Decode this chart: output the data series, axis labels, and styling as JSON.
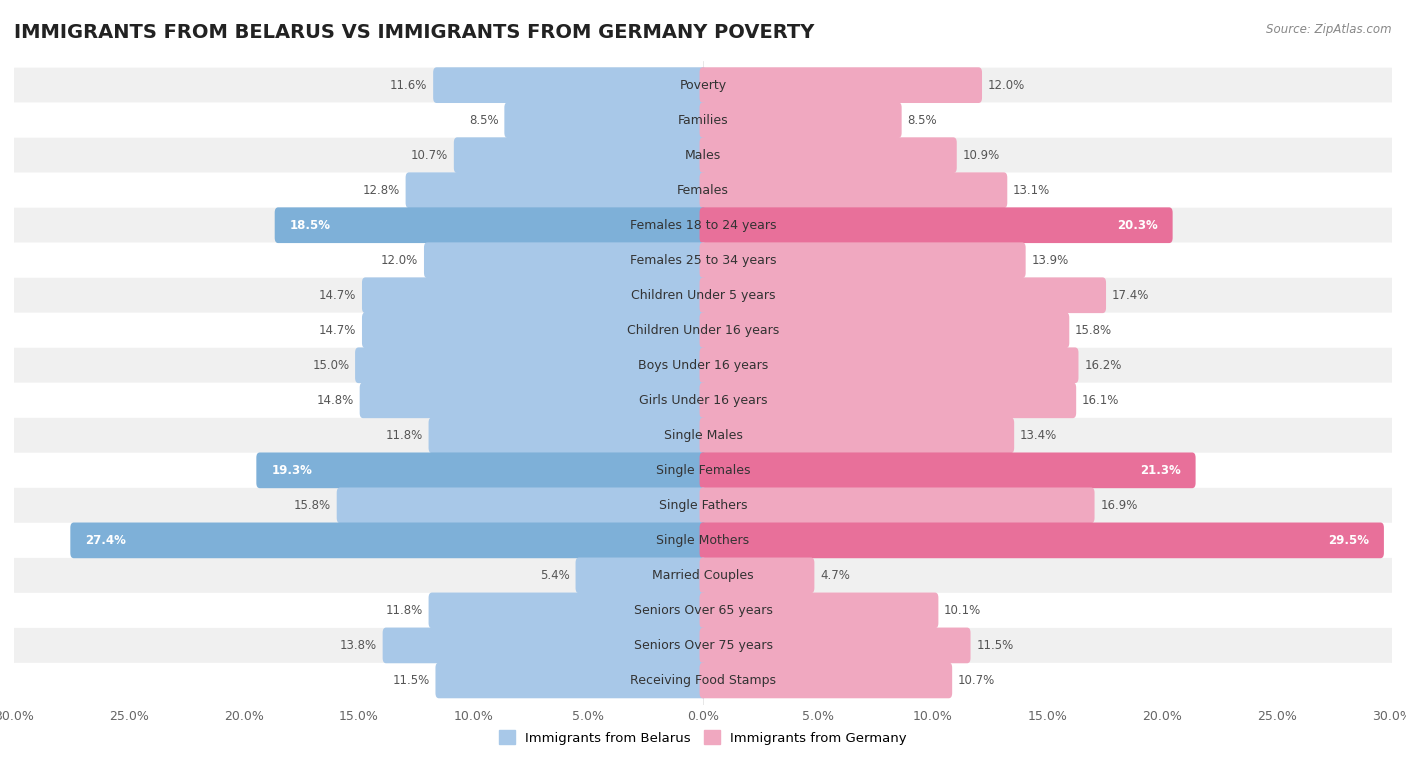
{
  "title": "IMMIGRANTS FROM BELARUS VS IMMIGRANTS FROM GERMANY POVERTY",
  "source": "Source: ZipAtlas.com",
  "categories": [
    "Poverty",
    "Families",
    "Males",
    "Females",
    "Females 18 to 24 years",
    "Females 25 to 34 years",
    "Children Under 5 years",
    "Children Under 16 years",
    "Boys Under 16 years",
    "Girls Under 16 years",
    "Single Males",
    "Single Females",
    "Single Fathers",
    "Single Mothers",
    "Married Couples",
    "Seniors Over 65 years",
    "Seniors Over 75 years",
    "Receiving Food Stamps"
  ],
  "belarus_values": [
    11.6,
    8.5,
    10.7,
    12.8,
    18.5,
    12.0,
    14.7,
    14.7,
    15.0,
    14.8,
    11.8,
    19.3,
    15.8,
    27.4,
    5.4,
    11.8,
    13.8,
    11.5
  ],
  "germany_values": [
    12.0,
    8.5,
    10.9,
    13.1,
    20.3,
    13.9,
    17.4,
    15.8,
    16.2,
    16.1,
    13.4,
    21.3,
    16.9,
    29.5,
    4.7,
    10.1,
    11.5,
    10.7
  ],
  "belarus_color": "#A8C8E8",
  "germany_color": "#F0A8C0",
  "highlight_belarus_color": "#7EB0D8",
  "highlight_germany_color": "#E8709A",
  "highlight_rows": [
    4,
    11,
    13
  ],
  "background_color": "#ffffff",
  "row_bg_odd": "#f0f0f0",
  "row_bg_even": "#ffffff",
  "xlim": 30.0,
  "bar_height": 0.72,
  "legend_labels": [
    "Immigrants from Belarus",
    "Immigrants from Germany"
  ],
  "title_fontsize": 14,
  "label_fontsize": 9,
  "value_fontsize": 8.5,
  "axis_label_fontsize": 9
}
